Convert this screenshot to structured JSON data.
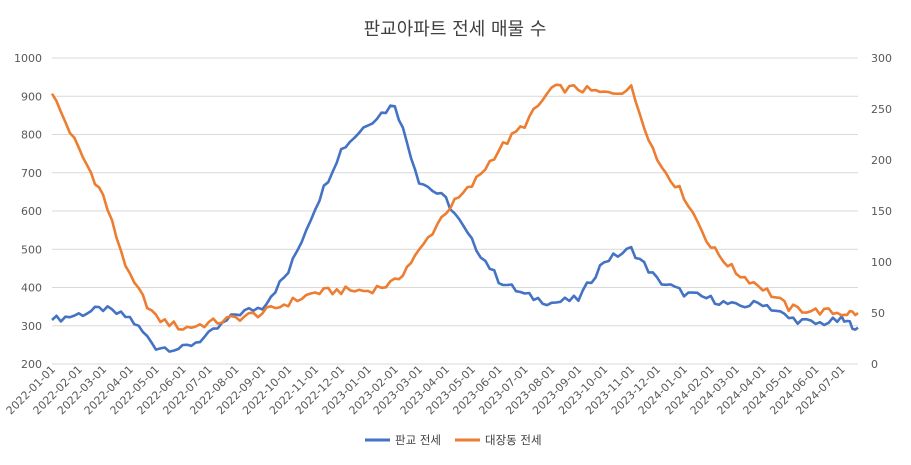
{
  "chart_data": {
    "type": "line",
    "title": "판교아파트 전세 매물 수",
    "x": [
      "2022-01-01",
      "2022-02-01",
      "2022-03-01",
      "2022-04-01",
      "2022-05-01",
      "2022-06-01",
      "2022-07-01",
      "2022-08-01",
      "2022-09-01",
      "2022-10-01",
      "2022-11-01",
      "2022-12-01",
      "2023-01-01",
      "2023-02-01",
      "2023-03-01",
      "2023-04-01",
      "2023-05-01",
      "2023-06-01",
      "2023-07-01",
      "2023-08-01",
      "2023-09-01",
      "2023-10-01",
      "2023-11-01",
      "2023-12-01",
      "2024-01-01",
      "2024-02-01",
      "2024-03-01",
      "2024-04-01",
      "2024-05-01",
      "2024-06-01",
      "2024-07-01",
      "2024-07-20"
    ],
    "x_tick_labels": [
      "2022-01-01",
      "2022-02-01",
      "2022-03-01",
      "2022-04-01",
      "2022-05-01",
      "2022-06-01",
      "2022-07-01",
      "2022-08-01",
      "2022-09-01",
      "2022-10-01",
      "2022-11-01",
      "2022-12-01",
      "2023-01-01",
      "2023-02-01",
      "2023-03-01",
      "2023-04-01",
      "2023-05-01",
      "2023-06-01",
      "2023-07-01",
      "2023-08-01",
      "2023-09-01",
      "2023-10-01",
      "2023-11-01",
      "2023-12-01",
      "2024-01-01",
      "2024-02-01",
      "2024-03-01",
      "2024-04-01",
      "2024-05-01",
      "2024-06-01",
      "2024-07-01"
    ],
    "y_left": {
      "min": 200,
      "max": 1000,
      "ticks": [
        "200",
        "300",
        "400",
        "500",
        "600",
        "700",
        "800",
        "900",
        "1000"
      ]
    },
    "y_right": {
      "min": 0,
      "max": 300,
      "ticks": [
        "0",
        "50",
        "100",
        "150",
        "200",
        "250",
        "300"
      ]
    },
    "grid": true,
    "legend_position": "bottom",
    "series": [
      {
        "name": "판교 전세",
        "axis": "left",
        "color": "#4472c4",
        "values": [
          315,
          330,
          345,
          320,
          245,
          240,
          275,
          330,
          350,
          440,
          610,
          760,
          830,
          880,
          680,
          630,
          520,
          420,
          380,
          360,
          370,
          470,
          500,
          420,
          385,
          370,
          350,
          360,
          320,
          305,
          315,
          295
        ]
      },
      {
        "name": "대장동 전세",
        "axis": "right",
        "color": "#ed7d31",
        "values": [
          265,
          210,
          165,
          85,
          45,
          35,
          40,
          45,
          50,
          60,
          70,
          72,
          72,
          80,
          110,
          150,
          175,
          210,
          235,
          270,
          270,
          265,
          270,
          200,
          165,
          115,
          90,
          75,
          55,
          52,
          50,
          50
        ]
      }
    ]
  }
}
